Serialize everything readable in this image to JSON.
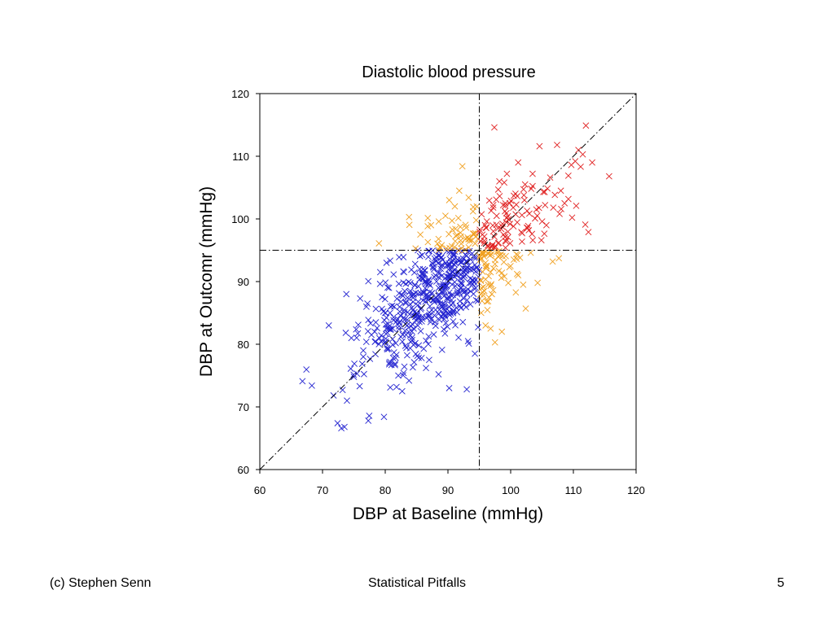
{
  "footer": {
    "author": "(c) Stephen Senn",
    "title": "Statistical Pitfalls",
    "page_number": "5"
  },
  "chart_data": {
    "type": "scatter",
    "title": "Diastolic blood pressure",
    "xlabel": "DBP at Baseline (mmHg)",
    "ylabel": "DBP at Outcomr (mmHg)",
    "xlim": [
      60,
      120
    ],
    "ylim": [
      60,
      120
    ],
    "xticks": [
      60,
      70,
      80,
      90,
      100,
      110,
      120
    ],
    "yticks": [
      60,
      70,
      80,
      90,
      100,
      110,
      120
    ],
    "grid": false,
    "marker": "x",
    "reference_lines": {
      "vertical_x": 95,
      "horizontal_y": 95,
      "identity_diagonal": true,
      "style": "dash-dot"
    },
    "colors": {
      "both_below": "#2323d0",
      "mixed": "#f0a020",
      "both_above": "#e02020",
      "axis": "#000000",
      "reference": "#000000"
    },
    "seed_points": {
      "both_below": [
        [
          66.8,
          74.1
        ],
        [
          68.3,
          73.4
        ],
        [
          71,
          83
        ],
        [
          72.4,
          67.4
        ],
        [
          73,
          66.6
        ],
        [
          73.5,
          66.8
        ],
        [
          73.2,
          72.7
        ],
        [
          73.9,
          71
        ],
        [
          75,
          74.8
        ],
        [
          74.5,
          76.1
        ],
        [
          75.5,
          75.3
        ],
        [
          76.5,
          78
        ],
        [
          77.3,
          67.8
        ],
        [
          79.8,
          68.4
        ],
        [
          80.8,
          73.1
        ],
        [
          81,
          76.7
        ],
        [
          82.7,
          72.5
        ],
        [
          83.8,
          74.2
        ],
        [
          74.6,
          81
        ],
        [
          75.7,
          83.1
        ],
        [
          76.5,
          79
        ],
        [
          77,
          86
        ],
        [
          78.5,
          83.5
        ],
        [
          79.5,
          87.5
        ],
        [
          80,
          85
        ],
        [
          80.6,
          89
        ],
        [
          81.2,
          82.5
        ],
        [
          82,
          84
        ],
        [
          82.5,
          86.8
        ],
        [
          83,
          91.5
        ],
        [
          84,
          88.5
        ],
        [
          84.5,
          79.9
        ],
        [
          85,
          85
        ],
        [
          85.5,
          92
        ],
        [
          86,
          87
        ],
        [
          86.5,
          90
        ],
        [
          87,
          84.5
        ],
        [
          87.5,
          88.2
        ],
        [
          88,
          91
        ],
        [
          88.5,
          93
        ],
        [
          89,
          86
        ],
        [
          89.6,
          89.2
        ],
        [
          90,
          92.5
        ],
        [
          90.5,
          87.8
        ],
        [
          91,
          90.8
        ],
        [
          91.5,
          93.5
        ],
        [
          92,
          89
        ],
        [
          92.5,
          91.5
        ],
        [
          93,
          88
        ],
        [
          93.5,
          92
        ],
        [
          94,
          90.2
        ],
        [
          94.5,
          93.8
        ],
        [
          90.2,
          73
        ],
        [
          93,
          72.8
        ],
        [
          87,
          77.5
        ],
        [
          88.5,
          75.2
        ],
        [
          85.8,
          77.8
        ],
        [
          86.5,
          76.2
        ],
        [
          94.3,
          78.5
        ],
        [
          93.2,
          80.5
        ],
        [
          83.5,
          83
        ],
        [
          79,
          80
        ],
        [
          77.8,
          81.5
        ],
        [
          81.4,
          78.7
        ],
        [
          73.8,
          88
        ],
        [
          76,
          87.3
        ],
        [
          79.2,
          91.5
        ],
        [
          80.2,
          93
        ],
        [
          82.9,
          93.9
        ],
        [
          85.2,
          95
        ]
      ],
      "mixed": [
        [
          79,
          96.1
        ],
        [
          83.8,
          100.3
        ],
        [
          85.6,
          97.5
        ],
        [
          87.3,
          99
        ],
        [
          88.5,
          96.8
        ],
        [
          89.6,
          100.5
        ],
        [
          90.2,
          103
        ],
        [
          91.1,
          102
        ],
        [
          91.8,
          104.5
        ],
        [
          92.3,
          108.4
        ],
        [
          93.3,
          103.4
        ],
        [
          94,
          101.2
        ],
        [
          94.5,
          99.8
        ],
        [
          93.5,
          96.5
        ],
        [
          92,
          97.8
        ],
        [
          90.7,
          98.3
        ],
        [
          89,
          95.8
        ],
        [
          86.8,
          96.3
        ],
        [
          95.5,
          94.5
        ],
        [
          96,
          93
        ],
        [
          96.8,
          91.5
        ],
        [
          97.5,
          92.8
        ],
        [
          98.2,
          94.2
        ],
        [
          99,
          90.8
        ],
        [
          99.8,
          92.3
        ],
        [
          100.5,
          93.5
        ],
        [
          101.2,
          91
        ],
        [
          102,
          89.5
        ],
        [
          102.4,
          85.7
        ],
        [
          104.3,
          89.8
        ],
        [
          106.7,
          93.2
        ],
        [
          95.8,
          88.5
        ],
        [
          96.2,
          86.8
        ],
        [
          95.3,
          85
        ],
        [
          96,
          83
        ],
        [
          97.5,
          80.3
        ],
        [
          96.8,
          82.5
        ],
        [
          98.6,
          82
        ],
        [
          97,
          88
        ],
        [
          101.5,
          93.8
        ],
        [
          103.2,
          94.6
        ]
      ],
      "both_above": [
        [
          95.5,
          97.5
        ],
        [
          96.2,
          99.6
        ],
        [
          96.9,
          101.3
        ],
        [
          97.4,
          114.6
        ],
        [
          98,
          98.5
        ],
        [
          98.2,
          106
        ],
        [
          98.8,
          102.2
        ],
        [
          99.4,
          107.2
        ],
        [
          99.9,
          99.2
        ],
        [
          100.5,
          103.7
        ],
        [
          101.2,
          109
        ],
        [
          101.8,
          100.6
        ],
        [
          102.3,
          105.5
        ],
        [
          102.9,
          98.2
        ],
        [
          103.5,
          107.2
        ],
        [
          104.1,
          101.5
        ],
        [
          104.6,
          111.6
        ],
        [
          105.2,
          104.3
        ],
        [
          105.7,
          99
        ],
        [
          106.3,
          106.6
        ],
        [
          106.8,
          101.8
        ],
        [
          107.4,
          111.8
        ],
        [
          108,
          104.5
        ],
        [
          108.6,
          102.5
        ],
        [
          109.2,
          106.9
        ],
        [
          109.8,
          100.2
        ],
        [
          110.3,
          109.2
        ],
        [
          111.5,
          110.3
        ],
        [
          112,
          114.9
        ],
        [
          112.4,
          97.9
        ],
        [
          111.9,
          99.1
        ],
        [
          115.7,
          106.8
        ],
        [
          110.8,
          111
        ],
        [
          113,
          109
        ],
        [
          100.4,
          101.8
        ],
        [
          99.1,
          97.1
        ],
        [
          103.4,
          97.6
        ],
        [
          107.8,
          100.8
        ],
        [
          104.9,
          96.6
        ],
        [
          102.2,
          103
        ]
      ]
    }
  }
}
